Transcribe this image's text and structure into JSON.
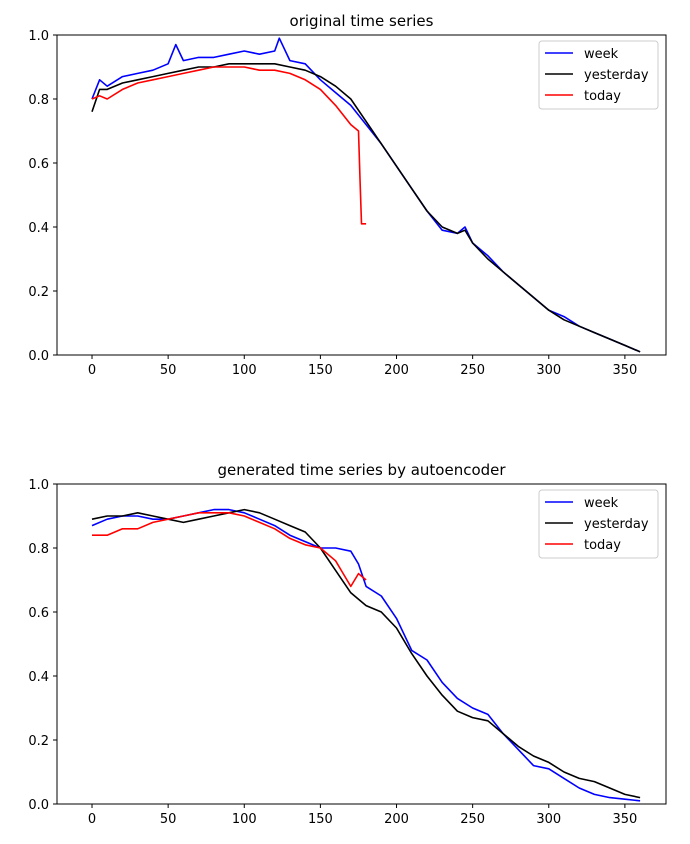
{
  "chart_data": [
    {
      "type": "line",
      "title": "original time series",
      "xlabel": "",
      "ylabel": "",
      "xlim": [
        -23,
        377
      ],
      "ylim": [
        0.0,
        1.0
      ],
      "xticks": [
        "0",
        "50",
        "100",
        "150",
        "200",
        "250",
        "300",
        "350"
      ],
      "yticks": [
        "0.0",
        "0.2",
        "0.4",
        "0.6",
        "0.8",
        "1.0"
      ],
      "grid": false,
      "legend_position": "top-right",
      "series": [
        {
          "name": "week",
          "color": "#0000ff",
          "x": [
            0,
            5,
            10,
            20,
            30,
            40,
            50,
            55,
            60,
            70,
            80,
            90,
            100,
            110,
            120,
            123,
            130,
            140,
            150,
            160,
            170,
            180,
            190,
            200,
            210,
            220,
            230,
            240,
            245,
            250,
            260,
            270,
            280,
            290,
            300,
            310,
            320,
            330,
            340,
            350,
            360
          ],
          "values": [
            0.8,
            0.86,
            0.84,
            0.87,
            0.88,
            0.89,
            0.91,
            0.97,
            0.92,
            0.93,
            0.93,
            0.94,
            0.95,
            0.94,
            0.95,
            0.99,
            0.92,
            0.91,
            0.86,
            0.82,
            0.78,
            0.72,
            0.66,
            0.59,
            0.52,
            0.45,
            0.39,
            0.38,
            0.4,
            0.35,
            0.31,
            0.26,
            0.22,
            0.18,
            0.14,
            0.12,
            0.09,
            0.07,
            0.05,
            0.03,
            0.01
          ]
        },
        {
          "name": "yesterday",
          "color": "#000000",
          "x": [
            0,
            5,
            10,
            20,
            30,
            40,
            50,
            60,
            70,
            80,
            90,
            100,
            110,
            120,
            130,
            140,
            150,
            160,
            170,
            180,
            190,
            200,
            210,
            220,
            230,
            240,
            245,
            250,
            260,
            270,
            280,
            290,
            300,
            310,
            320,
            330,
            340,
            350,
            360
          ],
          "values": [
            0.76,
            0.83,
            0.83,
            0.85,
            0.86,
            0.87,
            0.88,
            0.89,
            0.9,
            0.9,
            0.91,
            0.91,
            0.91,
            0.91,
            0.9,
            0.89,
            0.87,
            0.84,
            0.8,
            0.73,
            0.66,
            0.59,
            0.52,
            0.45,
            0.4,
            0.38,
            0.39,
            0.35,
            0.3,
            0.26,
            0.22,
            0.18,
            0.14,
            0.11,
            0.09,
            0.07,
            0.05,
            0.03,
            0.01
          ]
        },
        {
          "name": "today",
          "color": "#ff0000",
          "x": [
            0,
            5,
            10,
            20,
            30,
            40,
            50,
            60,
            70,
            80,
            90,
            100,
            110,
            120,
            130,
            140,
            150,
            160,
            165,
            170,
            175,
            176,
            177,
            180
          ],
          "values": [
            0.8,
            0.81,
            0.8,
            0.83,
            0.85,
            0.86,
            0.87,
            0.88,
            0.89,
            0.9,
            0.9,
            0.9,
            0.89,
            0.89,
            0.88,
            0.86,
            0.83,
            0.78,
            0.75,
            0.72,
            0.7,
            0.55,
            0.41,
            0.41
          ]
        }
      ]
    },
    {
      "type": "line",
      "title": "generated time series by autoencoder",
      "xlabel": "",
      "ylabel": "",
      "xlim": [
        -23,
        377
      ],
      "ylim": [
        0.0,
        1.0
      ],
      "xticks": [
        "0",
        "50",
        "100",
        "150",
        "200",
        "250",
        "300",
        "350"
      ],
      "yticks": [
        "0.0",
        "0.2",
        "0.4",
        "0.6",
        "0.8",
        "1.0"
      ],
      "grid": false,
      "legend_position": "top-right",
      "series": [
        {
          "name": "week",
          "color": "#0000ff",
          "x": [
            0,
            10,
            20,
            30,
            40,
            50,
            60,
            70,
            80,
            90,
            100,
            110,
            120,
            130,
            140,
            150,
            160,
            170,
            175,
            180,
            190,
            200,
            210,
            220,
            230,
            240,
            250,
            260,
            270,
            280,
            290,
            300,
            310,
            320,
            330,
            340,
            350,
            360
          ],
          "values": [
            0.87,
            0.89,
            0.9,
            0.9,
            0.89,
            0.89,
            0.9,
            0.91,
            0.92,
            0.92,
            0.91,
            0.89,
            0.87,
            0.84,
            0.82,
            0.8,
            0.8,
            0.79,
            0.75,
            0.68,
            0.65,
            0.58,
            0.48,
            0.45,
            0.38,
            0.33,
            0.3,
            0.28,
            0.22,
            0.17,
            0.12,
            0.11,
            0.08,
            0.05,
            0.03,
            0.02,
            0.015,
            0.01
          ]
        },
        {
          "name": "yesterday",
          "color": "#000000",
          "x": [
            0,
            10,
            20,
            30,
            40,
            50,
            60,
            70,
            80,
            90,
            100,
            110,
            120,
            130,
            140,
            150,
            160,
            170,
            180,
            190,
            200,
            210,
            220,
            230,
            240,
            250,
            260,
            270,
            280,
            290,
            300,
            310,
            320,
            330,
            340,
            350,
            360
          ],
          "values": [
            0.89,
            0.9,
            0.9,
            0.91,
            0.9,
            0.89,
            0.88,
            0.89,
            0.9,
            0.91,
            0.92,
            0.91,
            0.89,
            0.87,
            0.85,
            0.8,
            0.73,
            0.66,
            0.62,
            0.6,
            0.55,
            0.47,
            0.4,
            0.34,
            0.29,
            0.27,
            0.26,
            0.22,
            0.18,
            0.15,
            0.13,
            0.1,
            0.08,
            0.07,
            0.05,
            0.03,
            0.02
          ]
        },
        {
          "name": "today",
          "color": "#ff0000",
          "x": [
            0,
            10,
            20,
            30,
            40,
            50,
            60,
            70,
            80,
            90,
            100,
            110,
            120,
            130,
            140,
            150,
            160,
            165,
            170,
            175,
            180
          ],
          "values": [
            0.84,
            0.84,
            0.86,
            0.86,
            0.88,
            0.89,
            0.9,
            0.91,
            0.91,
            0.91,
            0.9,
            0.88,
            0.86,
            0.83,
            0.81,
            0.8,
            0.76,
            0.72,
            0.68,
            0.72,
            0.7
          ]
        }
      ]
    }
  ]
}
